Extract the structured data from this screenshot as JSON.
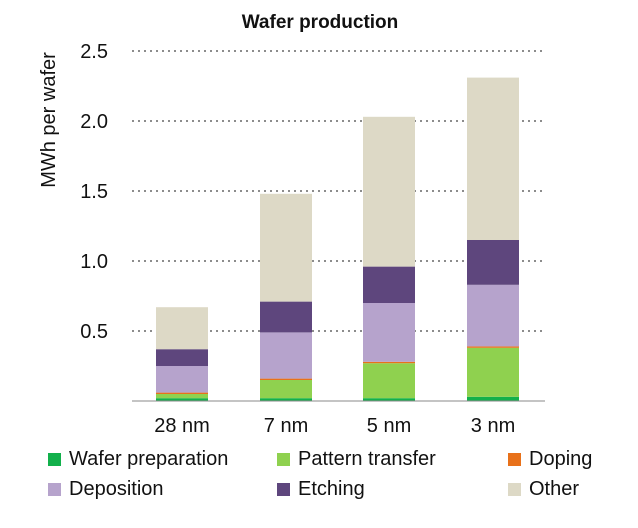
{
  "chart_data": {
    "type": "bar",
    "stacked": true,
    "title": "Wafer production",
    "xlabel": "",
    "ylabel": "MWh per wafer",
    "ylim": [
      0,
      2.5
    ],
    "yticks": [
      "0.5",
      "1.0",
      "1.5",
      "2.0",
      "2.5"
    ],
    "ytick_values": [
      0.5,
      1.0,
      1.5,
      2.0,
      2.5
    ],
    "grid": "horizontal dotted",
    "categories": [
      "28 nm",
      "7 nm",
      "5 nm",
      "3 nm"
    ],
    "series": [
      {
        "name": "Wafer preparation",
        "color": "#12b04b",
        "values": [
          0.02,
          0.02,
          0.02,
          0.03
        ]
      },
      {
        "name": "Pattern transfer",
        "color": "#8fd14f",
        "values": [
          0.03,
          0.13,
          0.25,
          0.35
        ]
      },
      {
        "name": "Doping",
        "color": "#e8711a",
        "values": [
          0.01,
          0.01,
          0.01,
          0.01
        ]
      },
      {
        "name": "Deposition",
        "color": "#b6a3cc",
        "values": [
          0.19,
          0.33,
          0.42,
          0.44
        ]
      },
      {
        "name": "Etching",
        "color": "#5e467d",
        "values": [
          0.12,
          0.22,
          0.26,
          0.32
        ]
      },
      {
        "name": "Other",
        "color": "#ddd9c6",
        "values": [
          0.3,
          0.77,
          1.07,
          1.16
        ]
      }
    ]
  }
}
